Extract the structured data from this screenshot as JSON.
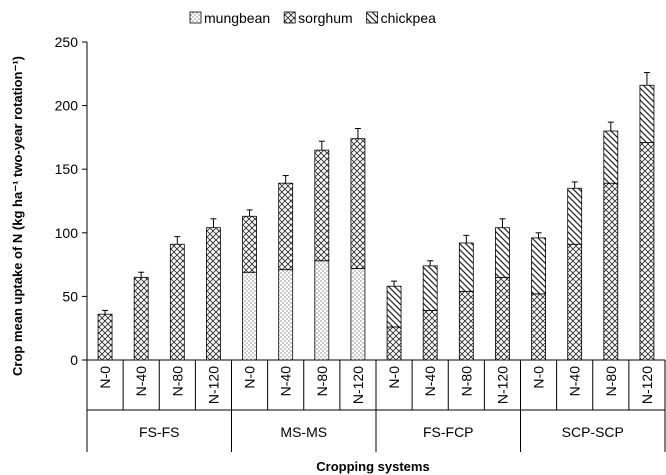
{
  "chart_data": {
    "type": "bar",
    "stacked": true,
    "xlabel": "Cropping systems",
    "ylabel": "Crop mean uptake of N (kg ha⁻¹ two-year rotation⁻¹)",
    "ylim": [
      0,
      250
    ],
    "yticks": [
      0,
      50,
      100,
      150,
      200,
      250
    ],
    "legend_position": "top",
    "groups": [
      "FS-FS",
      "MS-MS",
      "FS-FCP",
      "SCP-SCP"
    ],
    "categories": [
      "N-0",
      "N-40",
      "N-80",
      "N-120",
      "N-0",
      "N-40",
      "N-80",
      "N-120",
      "N-0",
      "N-40",
      "N-80",
      "N-120",
      "N-0",
      "N-40",
      "N-80",
      "N-120"
    ],
    "series": [
      {
        "name": "mungbean",
        "pattern": "dots",
        "values": [
          0,
          0,
          0,
          0,
          69,
          71,
          78,
          72,
          0,
          0,
          0,
          0,
          0,
          0,
          0,
          0
        ]
      },
      {
        "name": "sorghum",
        "pattern": "crosshatch",
        "values": [
          36,
          65,
          91,
          104,
          44,
          68,
          87,
          102,
          26,
          39,
          54,
          65,
          52,
          91,
          139,
          171
        ]
      },
      {
        "name": "chickpea",
        "pattern": "diagonal",
        "values": [
          0,
          0,
          0,
          0,
          0,
          0,
          0,
          0,
          32,
          35,
          38,
          39,
          44,
          44,
          41,
          45
        ]
      }
    ],
    "error": [
      3,
      4,
      6,
      7,
      5,
      6,
      7,
      8,
      4,
      4,
      6,
      7,
      4,
      5,
      7,
      10
    ]
  }
}
